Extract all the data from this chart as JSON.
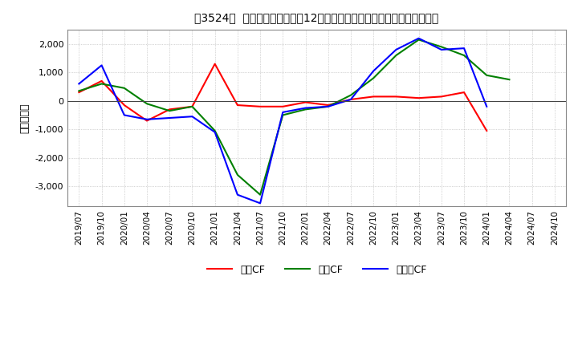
{
  "title": "［3524］  キャッシュフローの12か月移動合計の対前年同期増減額の推移",
  "ylabel": "（百万円）",
  "xlabel_labels": [
    "2019/07",
    "2019/10",
    "2020/01",
    "2020/04",
    "2020/07",
    "2020/10",
    "2021/01",
    "2021/04",
    "2021/07",
    "2021/10",
    "2022/01",
    "2022/04",
    "2022/07",
    "2022/10",
    "2023/01",
    "2023/04",
    "2023/07",
    "2023/10",
    "2024/01",
    "2024/04",
    "2024/07",
    "2024/10"
  ],
  "operating_cf": [
    300,
    700,
    -150,
    -700,
    -300,
    -200,
    1300,
    -150,
    -200,
    -200,
    -50,
    -150,
    50,
    150,
    150,
    100,
    150,
    300,
    -1050,
    null,
    null,
    null
  ],
  "investing_cf": [
    350,
    600,
    450,
    -100,
    -350,
    -200,
    -1050,
    -2600,
    -3300,
    -500,
    -300,
    -200,
    200,
    800,
    1600,
    2150,
    1900,
    1600,
    900,
    750,
    null,
    null
  ],
  "free_cf": [
    600,
    1250,
    -500,
    -650,
    -600,
    -550,
    -1100,
    -3300,
    -3600,
    -400,
    -250,
    -200,
    50,
    1050,
    1800,
    2200,
    1800,
    1850,
    -200,
    null,
    null,
    null
  ],
  "operating_color": "#ff0000",
  "investing_color": "#008000",
  "free_color": "#0000ff",
  "ylim": [
    -3700,
    2500
  ],
  "yticks": [
    -3000,
    -2000,
    -1000,
    0,
    1000,
    2000
  ],
  "background_color": "#ffffff",
  "grid_color": "#b0b0b0",
  "legend_labels": [
    "営業CF",
    "投資CF",
    "フリーCF"
  ]
}
